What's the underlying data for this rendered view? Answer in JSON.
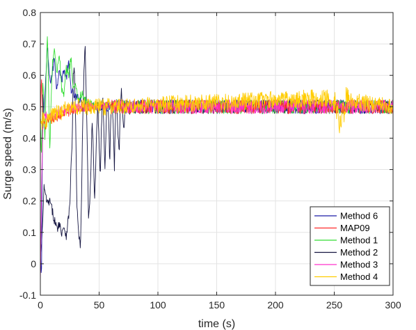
{
  "chart_data": {
    "type": "line",
    "title": "",
    "xlabel": "time (s)",
    "ylabel": "Surge speed (m/s)",
    "xlim": [
      0,
      300
    ],
    "ylim": [
      -0.1,
      0.8
    ],
    "xticks": [
      0,
      50,
      100,
      150,
      200,
      250,
      300
    ],
    "yticks": [
      -0.1,
      0,
      0.1,
      0.2,
      0.3,
      0.4,
      0.5,
      0.6,
      0.7,
      0.8
    ],
    "grid": true,
    "legend_position": "bottom-right",
    "series": [
      {
        "name": "Method 6",
        "color": "#1a1aa6",
        "settle_value": 0.5,
        "key_points": [
          [
            0,
            0.02
          ],
          [
            1,
            -0.05
          ],
          [
            2,
            0.55
          ],
          [
            3,
            0.47
          ],
          [
            5,
            0.62
          ],
          [
            6,
            0.69
          ],
          [
            8,
            0.58
          ],
          [
            10,
            0.6
          ],
          [
            12,
            0.66
          ],
          [
            14,
            0.55
          ],
          [
            16,
            0.63
          ],
          [
            18,
            0.58
          ],
          [
            20,
            0.62
          ],
          [
            22,
            0.59
          ],
          [
            24,
            0.64
          ],
          [
            26,
            0.56
          ],
          [
            28,
            0.54
          ],
          [
            30,
            0.53
          ],
          [
            35,
            0.52
          ],
          [
            40,
            0.51
          ],
          [
            50,
            0.5
          ],
          [
            60,
            0.5
          ]
        ]
      },
      {
        "name": "MAP09",
        "color": "#ff2a2a",
        "settle_value": 0.5,
        "key_points": [
          [
            0,
            0.45
          ],
          [
            1,
            0.6
          ],
          [
            2,
            0.46
          ],
          [
            4,
            0.44
          ],
          [
            6,
            0.45
          ],
          [
            10,
            0.46
          ],
          [
            15,
            0.47
          ],
          [
            20,
            0.48
          ],
          [
            30,
            0.49
          ],
          [
            40,
            0.5
          ],
          [
            60,
            0.5
          ]
        ]
      },
      {
        "name": "Method 1",
        "color": "#33dd33",
        "settle_value": 0.5,
        "key_points": [
          [
            0,
            0.45
          ],
          [
            1,
            0.33
          ],
          [
            2,
            0.6
          ],
          [
            3,
            0.5
          ],
          [
            4,
            0.38
          ],
          [
            5,
            0.62
          ],
          [
            6,
            0.73
          ],
          [
            7,
            0.55
          ],
          [
            8,
            0.35
          ],
          [
            9,
            0.5
          ],
          [
            10,
            0.62
          ],
          [
            12,
            0.69
          ],
          [
            14,
            0.6
          ],
          [
            16,
            0.68
          ],
          [
            18,
            0.56
          ],
          [
            20,
            0.53
          ],
          [
            22,
            0.62
          ],
          [
            24,
            0.6
          ],
          [
            26,
            0.66
          ],
          [
            28,
            0.55
          ],
          [
            30,
            0.58
          ],
          [
            32,
            0.52
          ],
          [
            35,
            0.54
          ],
          [
            40,
            0.51
          ],
          [
            50,
            0.5
          ],
          [
            60,
            0.5
          ]
        ]
      },
      {
        "name": "Method 2",
        "color": "#141440",
        "settle_value": 0.5,
        "key_points": [
          [
            0,
            0.03
          ],
          [
            1,
            0.06
          ],
          [
            2,
            0.12
          ],
          [
            3,
            0.25
          ],
          [
            4,
            0.22
          ],
          [
            5,
            0.21
          ],
          [
            6,
            0.19
          ],
          [
            8,
            0.2
          ],
          [
            10,
            0.17
          ],
          [
            12,
            0.14
          ],
          [
            14,
            0.11
          ],
          [
            16,
            0.13
          ],
          [
            18,
            0.1
          ],
          [
            20,
            0.12
          ],
          [
            22,
            0.09
          ],
          [
            24,
            0.15
          ],
          [
            25,
            0.18
          ],
          [
            26,
            0.3
          ],
          [
            27,
            0.38
          ],
          [
            28,
            0.6
          ],
          [
            29,
            0.62
          ],
          [
            30,
            0.45
          ],
          [
            31,
            0.2
          ],
          [
            32,
            0.12
          ],
          [
            33,
            0.08
          ],
          [
            34,
            0.05
          ],
          [
            35,
            0.2
          ],
          [
            36,
            0.45
          ],
          [
            37,
            0.6
          ],
          [
            38,
            0.7
          ],
          [
            39,
            0.55
          ],
          [
            40,
            0.35
          ],
          [
            41,
            0.15
          ],
          [
            42,
            0.18
          ],
          [
            43,
            0.3
          ],
          [
            44,
            0.45
          ],
          [
            45,
            0.38
          ],
          [
            46,
            0.2
          ],
          [
            47,
            0.3
          ],
          [
            48,
            0.45
          ],
          [
            49,
            0.5
          ],
          [
            50,
            0.38
          ],
          [
            51,
            0.28
          ],
          [
            52,
            0.45
          ],
          [
            53,
            0.55
          ],
          [
            54,
            0.42
          ],
          [
            55,
            0.3
          ],
          [
            56,
            0.45
          ],
          [
            57,
            0.53
          ],
          [
            58,
            0.47
          ],
          [
            59,
            0.32
          ],
          [
            60,
            0.48
          ],
          [
            61,
            0.53
          ],
          [
            62,
            0.45
          ],
          [
            63,
            0.3
          ],
          [
            64,
            0.5
          ],
          [
            65,
            0.52
          ],
          [
            66,
            0.42
          ],
          [
            67,
            0.34
          ],
          [
            68,
            0.5
          ],
          [
            69,
            0.55
          ],
          [
            70,
            0.48
          ],
          [
            71,
            0.42
          ],
          [
            72,
            0.5
          ],
          [
            74,
            0.52
          ],
          [
            76,
            0.49
          ],
          [
            80,
            0.5
          ]
        ]
      },
      {
        "name": "Method 3",
        "color": "#ff33cc",
        "settle_value": 0.5,
        "key_points": [
          [
            0,
            -0.07
          ],
          [
            1,
            0.25
          ],
          [
            2,
            0.42
          ],
          [
            3,
            0.47
          ],
          [
            4,
            0.48
          ],
          [
            6,
            0.46
          ],
          [
            10,
            0.47
          ],
          [
            15,
            0.48
          ],
          [
            20,
            0.49
          ],
          [
            30,
            0.5
          ],
          [
            60,
            0.5
          ]
        ]
      },
      {
        "name": "Method 4",
        "color": "#ffcc00",
        "settle_value": 0.5,
        "key_points": [
          [
            0,
            0.43
          ],
          [
            2,
            0.46
          ],
          [
            4,
            0.45
          ],
          [
            10,
            0.47
          ],
          [
            20,
            0.49
          ],
          [
            30,
            0.5
          ],
          [
            60,
            0.5
          ],
          [
            250,
            0.53
          ],
          [
            255,
            0.44
          ],
          [
            260,
            0.52
          ],
          [
            300,
            0.5
          ]
        ]
      }
    ]
  }
}
